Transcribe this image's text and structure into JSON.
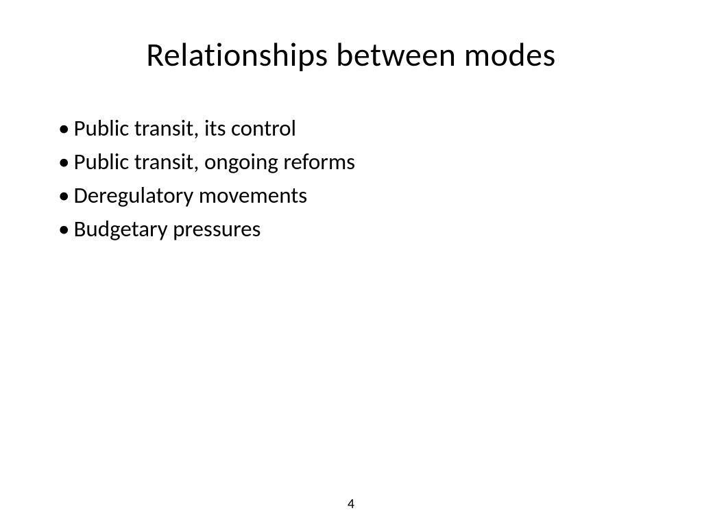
{
  "slide": {
    "title": "Relationships between modes",
    "bullets": [
      "Public transit, its control",
      "Public transit, ongoing reforms",
      "Deregulatory movements",
      "Budgetary pressures"
    ],
    "page_number": "4",
    "background_color": "#ffffff",
    "text_color": "#000000",
    "title_fontsize": 48,
    "body_fontsize": 33,
    "page_number_fontsize": 20
  }
}
